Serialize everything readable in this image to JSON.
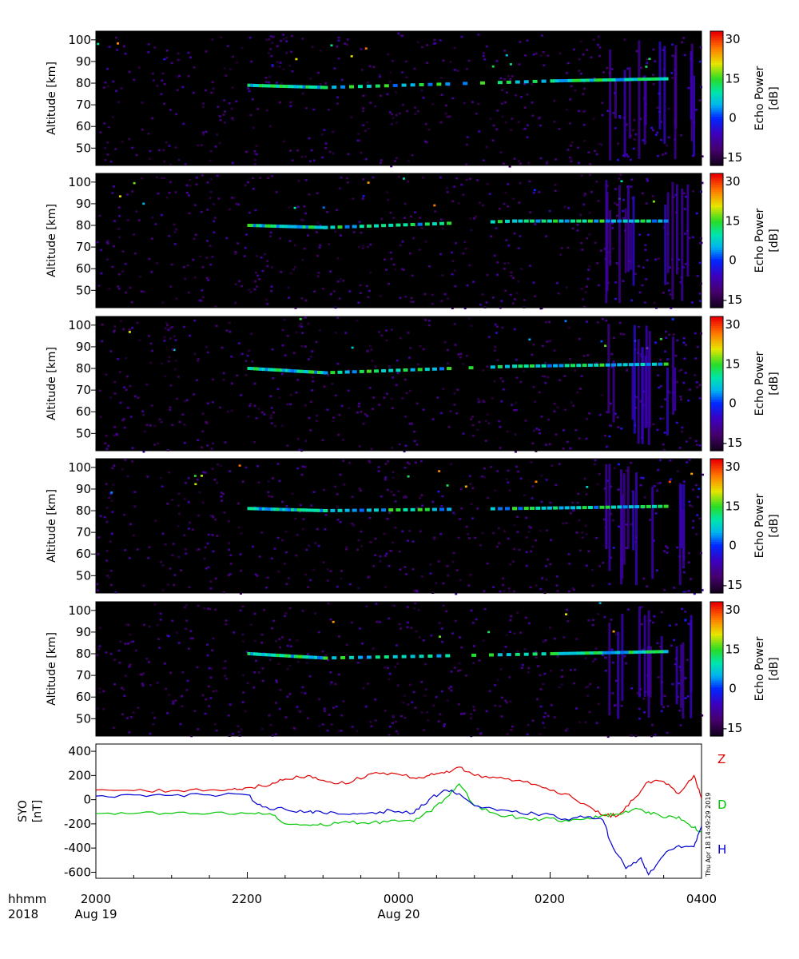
{
  "panels": [
    {
      "ylabel": "Altitude [km]",
      "cbar_label_1": "Echo Power",
      "cbar_label_2": "[dB]"
    },
    {
      "ylabel": "Altitude [km]",
      "cbar_label_1": "Echo Power",
      "cbar_label_2": "[dB]"
    },
    {
      "ylabel": "Altitude [km]",
      "cbar_label_1": "Echo Power",
      "cbar_label_2": "[dB]"
    },
    {
      "ylabel": "Altitude [km]",
      "cbar_label_1": "Echo Power",
      "cbar_label_2": "[dB]"
    },
    {
      "ylabel": "Altitude [km]",
      "cbar_label_1": "Echo Power",
      "cbar_label_2": "[dB]"
    }
  ],
  "alt_ticks": [
    "100",
    "90",
    "80",
    "70",
    "60",
    "50"
  ],
  "cbar_ticks": [
    "30",
    "15",
    "0",
    "-15"
  ],
  "mag": {
    "ylabel_1": "SYO",
    "ylabel_2": "[nT]",
    "yticks": [
      "400",
      "200",
      "0",
      "-200",
      "-400",
      "-600"
    ]
  },
  "timestamp": "Thu Apr 18 14:49:29 2019",
  "bottom": {
    "row1_label": "hhmm",
    "row2_label": "2018",
    "xticks": [
      "2000",
      "2200",
      "0000",
      "0200",
      "0400"
    ],
    "dates": [
      "Aug 19",
      "Aug 20"
    ]
  },
  "colors": {
    "Z": "#e00000",
    "D": "#00c800",
    "H": "#0000d0"
  },
  "chart_data": [
    {
      "type": "heatmap",
      "ylabel": "Altitude [km]",
      "ylim": [
        42,
        104
      ],
      "colorbar": {
        "label": "Echo Power [dB]",
        "range": [
          -18,
          33
        ]
      },
      "x_ticks": [
        "2000",
        "2200",
        "0000",
        "0200",
        "0400"
      ],
      "echo_layers": [
        {
          "time": "2200",
          "altitude": 79
        },
        {
          "time": "2300",
          "altitude": 78
        },
        {
          "time": "0200",
          "altitude": 81
        },
        {
          "time": "0330",
          "altitude": 82
        }
      ]
    },
    {
      "type": "heatmap",
      "ylabel": "Altitude [km]",
      "ylim": [
        42,
        104
      ],
      "colorbar": {
        "label": "Echo Power [dB]",
        "range": [
          -18,
          33
        ]
      },
      "echo_layers": [
        {
          "time": "2200",
          "altitude": 80
        },
        {
          "time": "2300",
          "altitude": 79
        },
        {
          "time": "0130",
          "altitude": 82
        },
        {
          "time": "0330",
          "altitude": 82
        }
      ]
    },
    {
      "type": "heatmap",
      "ylabel": "Altitude [km]",
      "ylim": [
        42,
        104
      ],
      "colorbar": {
        "label": "Echo Power [dB]",
        "range": [
          -18,
          33
        ]
      },
      "echo_layers": [
        {
          "time": "2200",
          "altitude": 80
        },
        {
          "time": "2300",
          "altitude": 78
        },
        {
          "time": "0130",
          "altitude": 81
        },
        {
          "time": "0330",
          "altitude": 82
        }
      ]
    },
    {
      "type": "heatmap",
      "ylabel": "Altitude [km]",
      "ylim": [
        42,
        104
      ],
      "colorbar": {
        "label": "Echo Power [dB]",
        "range": [
          -18,
          33
        ]
      },
      "echo_layers": [
        {
          "time": "2200",
          "altitude": 81
        },
        {
          "time": "2300",
          "altitude": 80
        },
        {
          "time": "0130",
          "altitude": 81
        },
        {
          "time": "0330",
          "altitude": 82
        }
      ]
    },
    {
      "type": "heatmap",
      "ylabel": "Altitude [km]",
      "ylim": [
        42,
        104
      ],
      "colorbar": {
        "label": "Echo Power [dB]",
        "range": [
          -18,
          33
        ]
      },
      "echo_layers": [
        {
          "time": "2200",
          "altitude": 80
        },
        {
          "time": "2300",
          "altitude": 78
        },
        {
          "time": "0200",
          "altitude": 80
        },
        {
          "time": "0330",
          "altitude": 81
        }
      ]
    },
    {
      "type": "line",
      "ylabel": "SYO [nT]",
      "ylim": [
        -650,
        460
      ],
      "xlim_hours": [
        20,
        28
      ],
      "x_tick_labels": [
        "2000",
        "2200",
        "0000",
        "0200",
        "0400"
      ],
      "series": [
        {
          "name": "Z",
          "color": "#e00000",
          "x": [
            20.0,
            20.5,
            21.0,
            21.5,
            21.8,
            22.0,
            22.3,
            22.5,
            22.8,
            23.0,
            23.3,
            23.6,
            23.9,
            24.2,
            24.4,
            24.6,
            24.8,
            25.0,
            25.3,
            25.6,
            25.9,
            26.2,
            26.5,
            26.7,
            26.9,
            27.1,
            27.3,
            27.5,
            27.7,
            27.9,
            28.0
          ],
          "y": [
            80,
            75,
            75,
            80,
            85,
            100,
            120,
            170,
            200,
            160,
            130,
            210,
            220,
            180,
            200,
            220,
            270,
            200,
            180,
            160,
            100,
            50,
            -50,
            -130,
            -130,
            0,
            150,
            150,
            50,
            200,
            10
          ]
        },
        {
          "name": "D",
          "color": "#00c800",
          "x": [
            20.0,
            20.5,
            21.0,
            21.5,
            22.0,
            22.3,
            22.5,
            22.8,
            23.0,
            23.3,
            23.6,
            23.9,
            24.2,
            24.4,
            24.6,
            24.8,
            25.0,
            25.3,
            25.6,
            25.9,
            26.2,
            26.5,
            26.7,
            26.9,
            27.1,
            27.3,
            27.5,
            27.7,
            27.9,
            28.0
          ],
          "y": [
            -115,
            -115,
            -115,
            -115,
            -115,
            -115,
            -200,
            -210,
            -210,
            -180,
            -200,
            -170,
            -180,
            -100,
            0,
            130,
            -50,
            -120,
            -150,
            -160,
            -170,
            -150,
            -130,
            -120,
            -80,
            -100,
            -150,
            -140,
            -230,
            -270
          ]
        },
        {
          "name": "H",
          "color": "#0000d0",
          "x": [
            20.0,
            20.5,
            21.0,
            21.5,
            22.0,
            22.2,
            22.5,
            22.8,
            23.0,
            23.3,
            23.6,
            23.9,
            24.2,
            24.4,
            24.6,
            24.8,
            25.0,
            25.3,
            25.6,
            25.9,
            26.2,
            26.5,
            26.7,
            26.8,
            27.0,
            27.2,
            27.3,
            27.5,
            27.7,
            27.9,
            28.0
          ],
          "y": [
            30,
            40,
            35,
            40,
            40,
            -60,
            -80,
            -100,
            -110,
            -120,
            -110,
            -90,
            -110,
            0,
            80,
            50,
            -50,
            -90,
            -110,
            -120,
            -160,
            -140,
            -170,
            -350,
            -570,
            -480,
            -620,
            -460,
            -380,
            -390,
            -220
          ]
        }
      ]
    }
  ]
}
